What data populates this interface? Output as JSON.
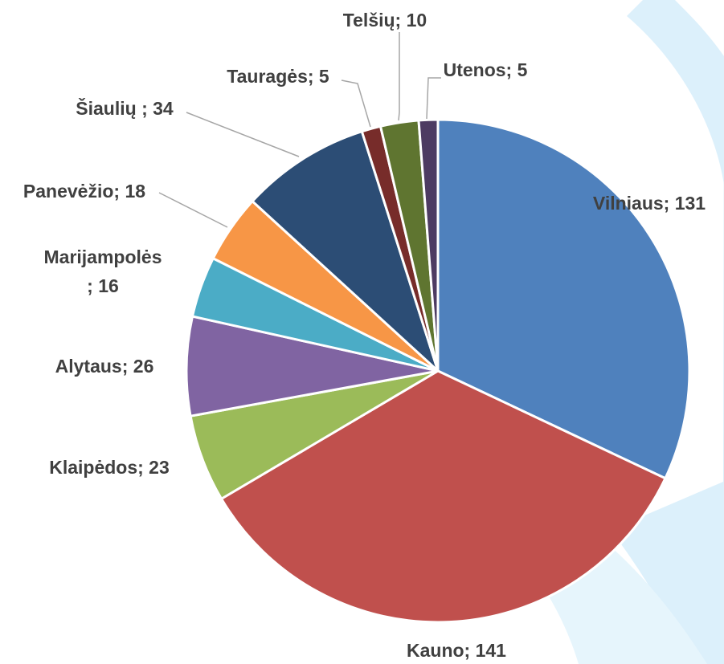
{
  "chart_data": {
    "type": "pie",
    "values": [
      131,
      141,
      23,
      26,
      16,
      18,
      34,
      5,
      10,
      5
    ],
    "value_labels": [
      "Vilniaus; 131",
      "Kauno; 141",
      "Klaipėdos; 23",
      "Alytaus; 26",
      "Marijampolės\n; 16",
      "Panevėžio; 18",
      "Šiaulių ; 34",
      "Tauragės; 5",
      "Telšių; 10",
      "Utenos; 5"
    ],
    "colors": [
      "#4f81bd",
      "#c0504d",
      "#9bbb59",
      "#8064a2",
      "#4bacc6",
      "#f79646",
      "#2c4d75",
      "#772c2a",
      "#5f7530",
      "#4d3b62"
    ]
  }
}
